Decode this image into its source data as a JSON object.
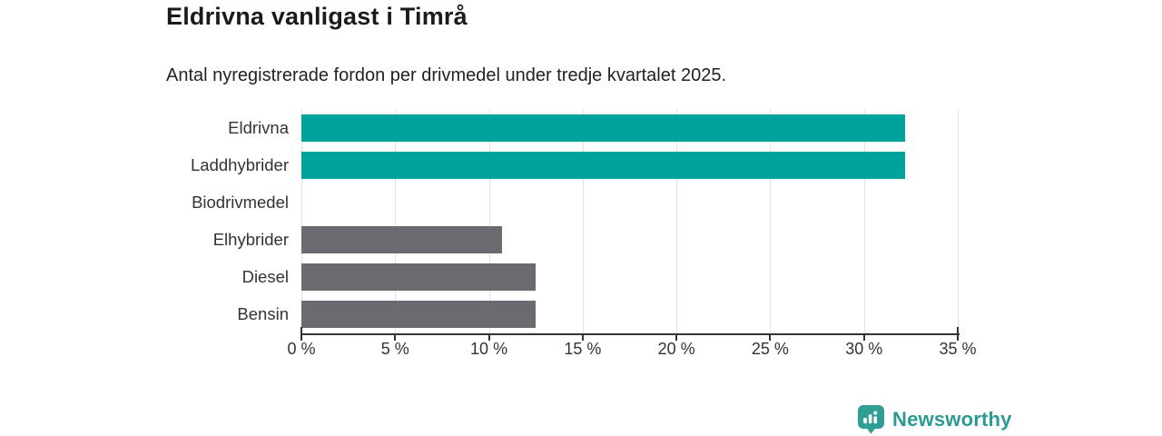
{
  "chart_data": {
    "type": "bar",
    "orientation": "horizontal",
    "title": "Eldrivna vanligast i Timrå",
    "subtitle": "Antal nyregistrerade fordon per drivmedel under tredje kvartalet 2025.",
    "categories": [
      "Eldrivna",
      "Laddhybrider",
      "Biodrivmedel",
      "Elhybrider",
      "Diesel",
      "Bensin"
    ],
    "values": [
      32.2,
      32.2,
      0,
      10.7,
      12.5,
      12.5
    ],
    "bar_colors": [
      "#00a39b",
      "#00a39b",
      "#6a6a70",
      "#6a6a70",
      "#6a6a70",
      "#6a6a70"
    ],
    "highlight_color": "#00a39b",
    "default_color": "#6a6a70",
    "xlabel": "",
    "ylabel": "",
    "xlim": [
      0,
      35
    ],
    "x_ticks": [
      0,
      5,
      10,
      15,
      20,
      25,
      30,
      35
    ],
    "x_tick_suffix": " %",
    "grid": "vertical-gridlines-on",
    "legend": "none"
  },
  "footer": {
    "brand": "Newsworthy",
    "brand_color": "#2b9a92",
    "logo_icon": "newsworthy-bubble-barchart-icon",
    "logo_color": "#2f9e95"
  }
}
